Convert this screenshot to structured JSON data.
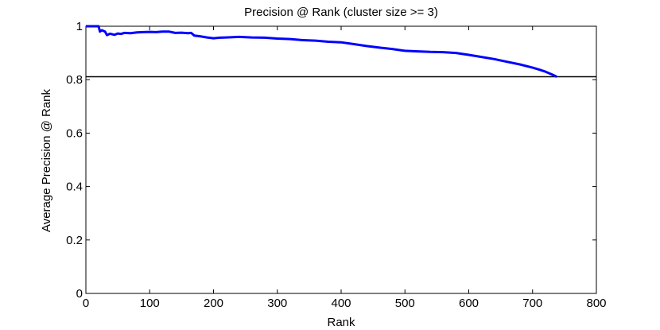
{
  "chart_data": {
    "type": "line",
    "title": "Precision @ Rank (cluster size >= 3)",
    "xlabel": "Rank",
    "ylabel": "Average Precision @ Rank",
    "xlim": [
      0,
      800
    ],
    "ylim": [
      0,
      1
    ],
    "x_ticks": [
      "0",
      "100",
      "200",
      "300",
      "400",
      "500",
      "600",
      "700",
      "800"
    ],
    "y_ticks": [
      "0",
      "0.2",
      "0.4",
      "0.6",
      "0.8",
      "1"
    ],
    "x_tick_values": [
      0,
      100,
      200,
      300,
      400,
      500,
      600,
      700,
      800
    ],
    "y_tick_values": [
      0,
      0.2,
      0.4,
      0.6,
      0.8,
      1
    ],
    "grid": false,
    "series": [
      {
        "color": "#0000ff",
        "x": [
          0,
          20,
          22,
          25,
          30,
          33,
          38,
          45,
          50,
          55,
          60,
          70,
          80,
          90,
          100,
          110,
          120,
          130,
          140,
          150,
          160,
          165,
          170,
          180,
          190,
          200,
          210,
          220,
          240,
          260,
          280,
          300,
          320,
          340,
          360,
          380,
          400,
          420,
          440,
          460,
          480,
          500,
          520,
          540,
          560,
          580,
          600,
          620,
          640,
          660,
          680,
          700,
          710,
          720,
          730,
          738
        ],
        "y": [
          1.0,
          1.0,
          0.98,
          0.985,
          0.98,
          0.967,
          0.972,
          0.968,
          0.973,
          0.971,
          0.975,
          0.974,
          0.977,
          0.978,
          0.979,
          0.978,
          0.98,
          0.98,
          0.975,
          0.976,
          0.974,
          0.975,
          0.965,
          0.962,
          0.958,
          0.955,
          0.957,
          0.958,
          0.96,
          0.958,
          0.957,
          0.954,
          0.952,
          0.948,
          0.946,
          0.942,
          0.94,
          0.933,
          0.926,
          0.92,
          0.915,
          0.908,
          0.906,
          0.904,
          0.903,
          0.9,
          0.893,
          0.885,
          0.877,
          0.867,
          0.857,
          0.845,
          0.838,
          0.83,
          0.82,
          0.811
        ]
      }
    ],
    "reference_line": {
      "y": 0.811,
      "color": "#000000"
    }
  }
}
